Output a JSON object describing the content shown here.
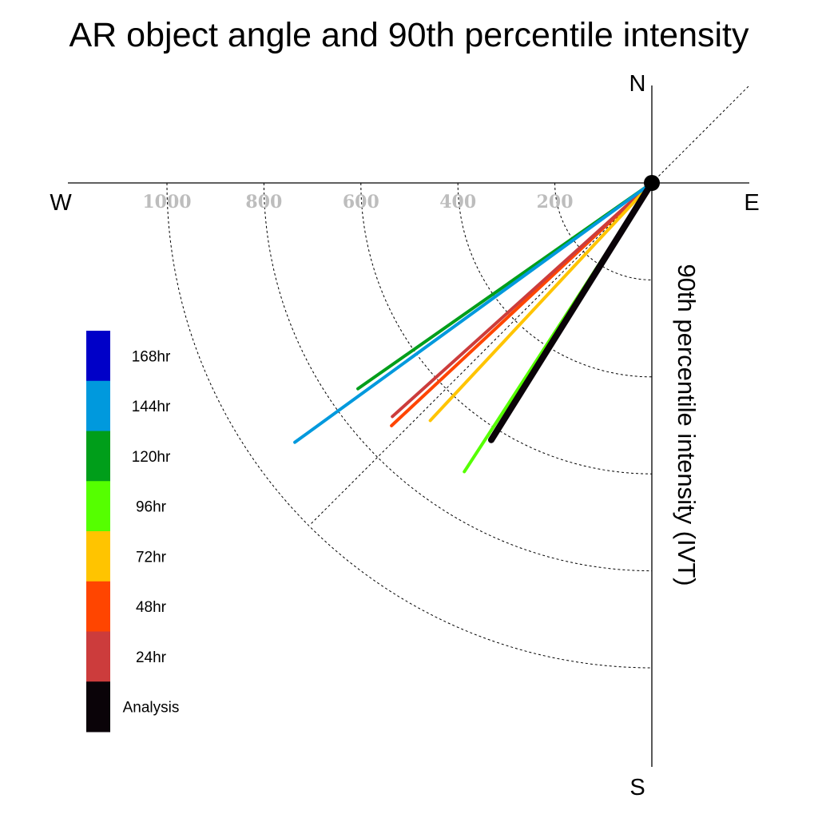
{
  "chart_data": {
    "type": "polar-vector",
    "title": "AR object angle and 90th percentile intensity",
    "ylabel": "90th percentile intensity (IVT)",
    "compass": {
      "north": "N",
      "south": "S",
      "east": "E",
      "west": "W"
    },
    "radial_ticks": [
      200,
      400,
      600,
      800,
      1000
    ],
    "radial_tick_labels": [
      "200",
      "400",
      "600",
      "800",
      "1000"
    ],
    "radial_range": [
      0,
      1000
    ],
    "grid": true,
    "legend_position": "left",
    "series": [
      {
        "name": "168hr",
        "color": "#0000c8",
        "angle": null,
        "intensity": null
      },
      {
        "name": "144hr",
        "color": "#0099dd",
        "angle": 234,
        "intensity": 910
      },
      {
        "name": "120hr",
        "color": "#009e1a",
        "angle": 235,
        "intensity": 740
      },
      {
        "name": "96hr",
        "color": "#55ff00",
        "angle": 213,
        "intensity": 710
      },
      {
        "name": "72hr",
        "color": "#ffc400",
        "angle": 223,
        "intensity": 670
      },
      {
        "name": "48hr",
        "color": "#ff4500",
        "angle": 227,
        "intensity": 734
      },
      {
        "name": "24hr",
        "color": "#cc3c3c",
        "angle": 228,
        "intensity": 720
      },
      {
        "name": "Analysis",
        "color": "#0a0308",
        "angle": 212,
        "intensity": 625
      }
    ]
  }
}
